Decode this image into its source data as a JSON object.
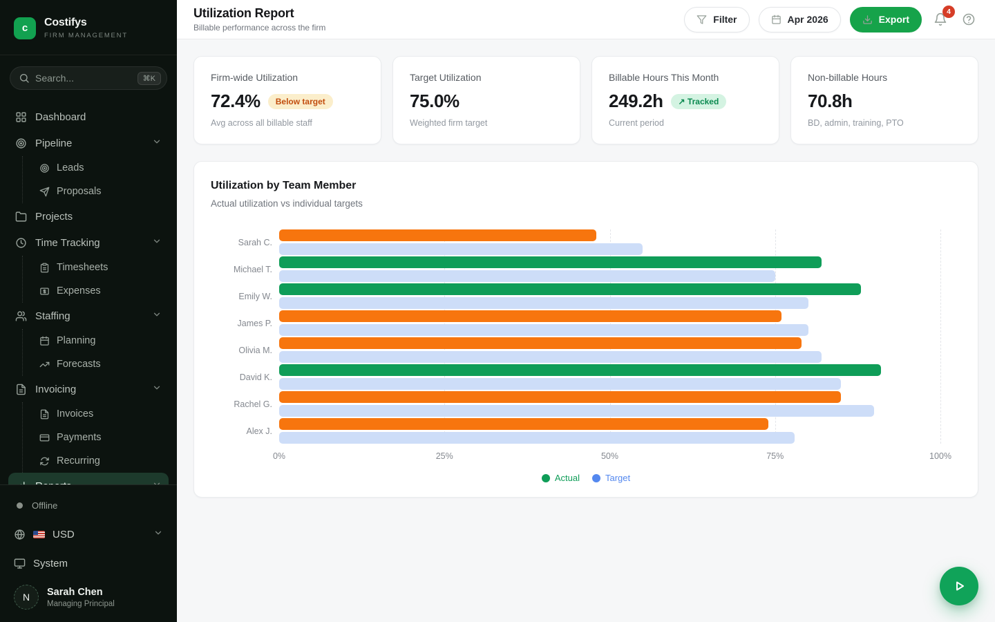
{
  "theme": {
    "brand_green": "#16a34a",
    "sidebar_bg": "#0c130f",
    "active_nav_bg": "#1d3a2c",
    "warn_badge_bg": "#fbeecb",
    "warn_badge_text": "#c24d0e",
    "good_badge_bg": "#d4f3e2",
    "good_badge_text": "#0b8a50",
    "notification_red": "#d63d27"
  },
  "sidebar": {
    "brand": {
      "logo_letter": "c",
      "name": "Costifys",
      "tagline": "FIRM MANAGEMENT"
    },
    "search": {
      "placeholder": "Search...",
      "shortcut": "⌘K"
    },
    "nav": [
      {
        "label": "Dashboard"
      },
      {
        "label": "Pipeline"
      },
      {
        "label": "Leads"
      },
      {
        "label": "Proposals"
      },
      {
        "label": "Projects"
      },
      {
        "label": "Time Tracking"
      },
      {
        "label": "Timesheets"
      },
      {
        "label": "Expenses"
      },
      {
        "label": "Staffing"
      },
      {
        "label": "Planning"
      },
      {
        "label": "Forecasts"
      },
      {
        "label": "Invoicing"
      },
      {
        "label": "Invoices"
      },
      {
        "label": "Payments"
      },
      {
        "label": "Recurring"
      },
      {
        "label": "Reports"
      }
    ],
    "footer": {
      "status": "Offline",
      "currency": "USD",
      "system": "System",
      "user": {
        "initial": "N",
        "name": "Sarah Chen",
        "role": "Managing Principal"
      }
    }
  },
  "header": {
    "title": "Utilization Report",
    "subtitle": "Billable performance across the firm",
    "filter_label": "Filter",
    "date_label": "Apr 2026",
    "export_label": "Export",
    "notification_count": "4"
  },
  "stats": [
    {
      "label": "Firm-wide Utilization",
      "value": "72.4%",
      "badge": "Below target",
      "caption": "Avg across all billable staff"
    },
    {
      "label": "Target Utilization",
      "value": "75.0%",
      "badge": "",
      "caption": "Weighted firm target"
    },
    {
      "label": "Billable Hours This Month",
      "value": "249.2h",
      "badge": "↗ Tracked",
      "caption": "Current period"
    },
    {
      "label": "Non-billable Hours",
      "value": "70.8h",
      "badge": "",
      "caption": "BD, admin, training, PTO"
    }
  ],
  "chart_data": {
    "type": "bar",
    "orientation": "horizontal",
    "title": "Utilization by Team Member",
    "subtitle": "Actual utilization vs individual targets",
    "categories": [
      "Sarah C.",
      "Michael T.",
      "Emily W.",
      "James P.",
      "Olivia M.",
      "David K.",
      "Rachel G.",
      "Alex J."
    ],
    "series": [
      {
        "name": "Actual",
        "values": [
          48,
          82,
          88,
          76,
          79,
          91,
          85,
          74
        ]
      },
      {
        "name": "Target",
        "values": [
          55,
          75,
          80,
          80,
          82,
          85,
          90,
          78
        ]
      }
    ],
    "xlim": [
      0,
      100
    ],
    "x_ticks": [
      "0%",
      "25%",
      "50%",
      "75%",
      "100%"
    ],
    "grid": "dashed vertical at 25% steps",
    "legend_position": "bottom-center",
    "legend": [
      "Actual",
      "Target"
    ],
    "colors": {
      "actual_above": "#0f9d58",
      "actual_below": "#f7750e",
      "target": "#cdddf8",
      "legend_actual": "#0f9d58",
      "legend_target": "#5488ef"
    }
  }
}
